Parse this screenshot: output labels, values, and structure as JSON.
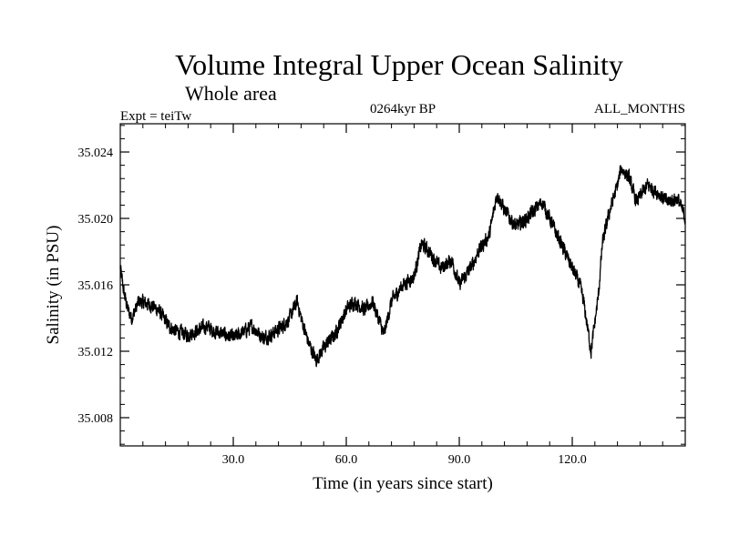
{
  "chart_data": {
    "type": "line",
    "title": "Volume Integral Upper Ocean Salinity",
    "subtitle": "Whole area",
    "header_left": "Expt = teiTw",
    "header_center": "0264kyr BP",
    "header_right": "ALL_MONTHS",
    "xlabel": "Time (in years since start)",
    "ylabel": "Salinity (in PSU)",
    "xlim": [
      0,
      150
    ],
    "ylim": [
      35.0063,
      35.0257
    ],
    "xticks": [
      30,
      60,
      90,
      120
    ],
    "xtick_labels": [
      "30.0",
      "60.0",
      "90.0",
      "120.0"
    ],
    "yticks": [
      35.008,
      35.012,
      35.016,
      35.02,
      35.024
    ],
    "ytick_labels": [
      "35.008",
      "35.012",
      "35.016",
      "35.020",
      "35.024"
    ],
    "grid": false,
    "series": [
      {
        "name": "Salinity",
        "color": "#000000",
        "x": [
          0,
          1,
          2,
          3,
          5,
          8,
          10,
          13,
          15,
          18,
          20,
          23,
          25,
          28,
          30,
          33,
          35,
          38,
          40,
          43,
          45,
          47,
          48,
          50,
          52,
          55,
          57,
          60,
          62,
          65,
          67,
          70,
          72,
          75,
          78,
          80,
          82,
          85,
          88,
          90,
          93,
          95,
          98,
          100,
          102,
          105,
          108,
          110,
          112,
          115,
          118,
          120,
          122,
          123,
          125,
          127,
          128,
          130,
          132,
          133,
          135,
          137,
          140,
          143,
          145,
          148,
          150
        ],
        "y": [
          35.017,
          35.0155,
          35.0145,
          35.014,
          35.015,
          35.0148,
          35.0145,
          35.0135,
          35.0132,
          35.013,
          35.0132,
          35.0135,
          35.0132,
          35.013,
          35.0128,
          35.0132,
          35.0135,
          35.0128,
          35.013,
          35.0135,
          35.014,
          35.015,
          35.014,
          35.0125,
          35.0115,
          35.0125,
          35.013,
          35.0145,
          35.015,
          35.0145,
          35.015,
          35.013,
          35.015,
          35.016,
          35.0165,
          35.0185,
          35.018,
          35.017,
          35.0175,
          35.016,
          35.017,
          35.018,
          35.019,
          35.0215,
          35.0205,
          35.0195,
          35.02,
          35.0205,
          35.021,
          35.0195,
          35.018,
          35.017,
          35.016,
          35.015,
          35.012,
          35.0155,
          35.0185,
          35.0205,
          35.022,
          35.023,
          35.0225,
          35.021,
          35.022,
          35.0215,
          35.021,
          35.0212,
          35.02
        ],
        "noise_amplitude": 0.00065
      }
    ]
  }
}
